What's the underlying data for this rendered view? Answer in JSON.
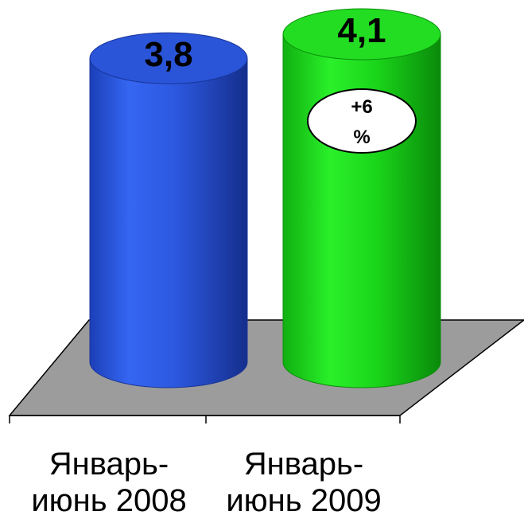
{
  "chart_data": {
    "type": "bar",
    "style": "3d-cylinder",
    "categories": [
      "Январь-июнь 2008",
      "Январь-июнь 2009"
    ],
    "category_lines": [
      [
        "Январь-",
        "июнь 2008"
      ],
      [
        "Январь-",
        "июнь 2009"
      ]
    ],
    "values": [
      3.8,
      4.1
    ],
    "value_labels": [
      "3,8",
      "4,1"
    ],
    "annotation": {
      "line1": "+6",
      "line2": "%"
    },
    "ylim": [
      0,
      4.1
    ],
    "grid": false,
    "legend": "none",
    "colors": {
      "bar1": "#2f5fe8",
      "bar2": "#1ee01e",
      "floor": "#9c9c9c"
    }
  }
}
